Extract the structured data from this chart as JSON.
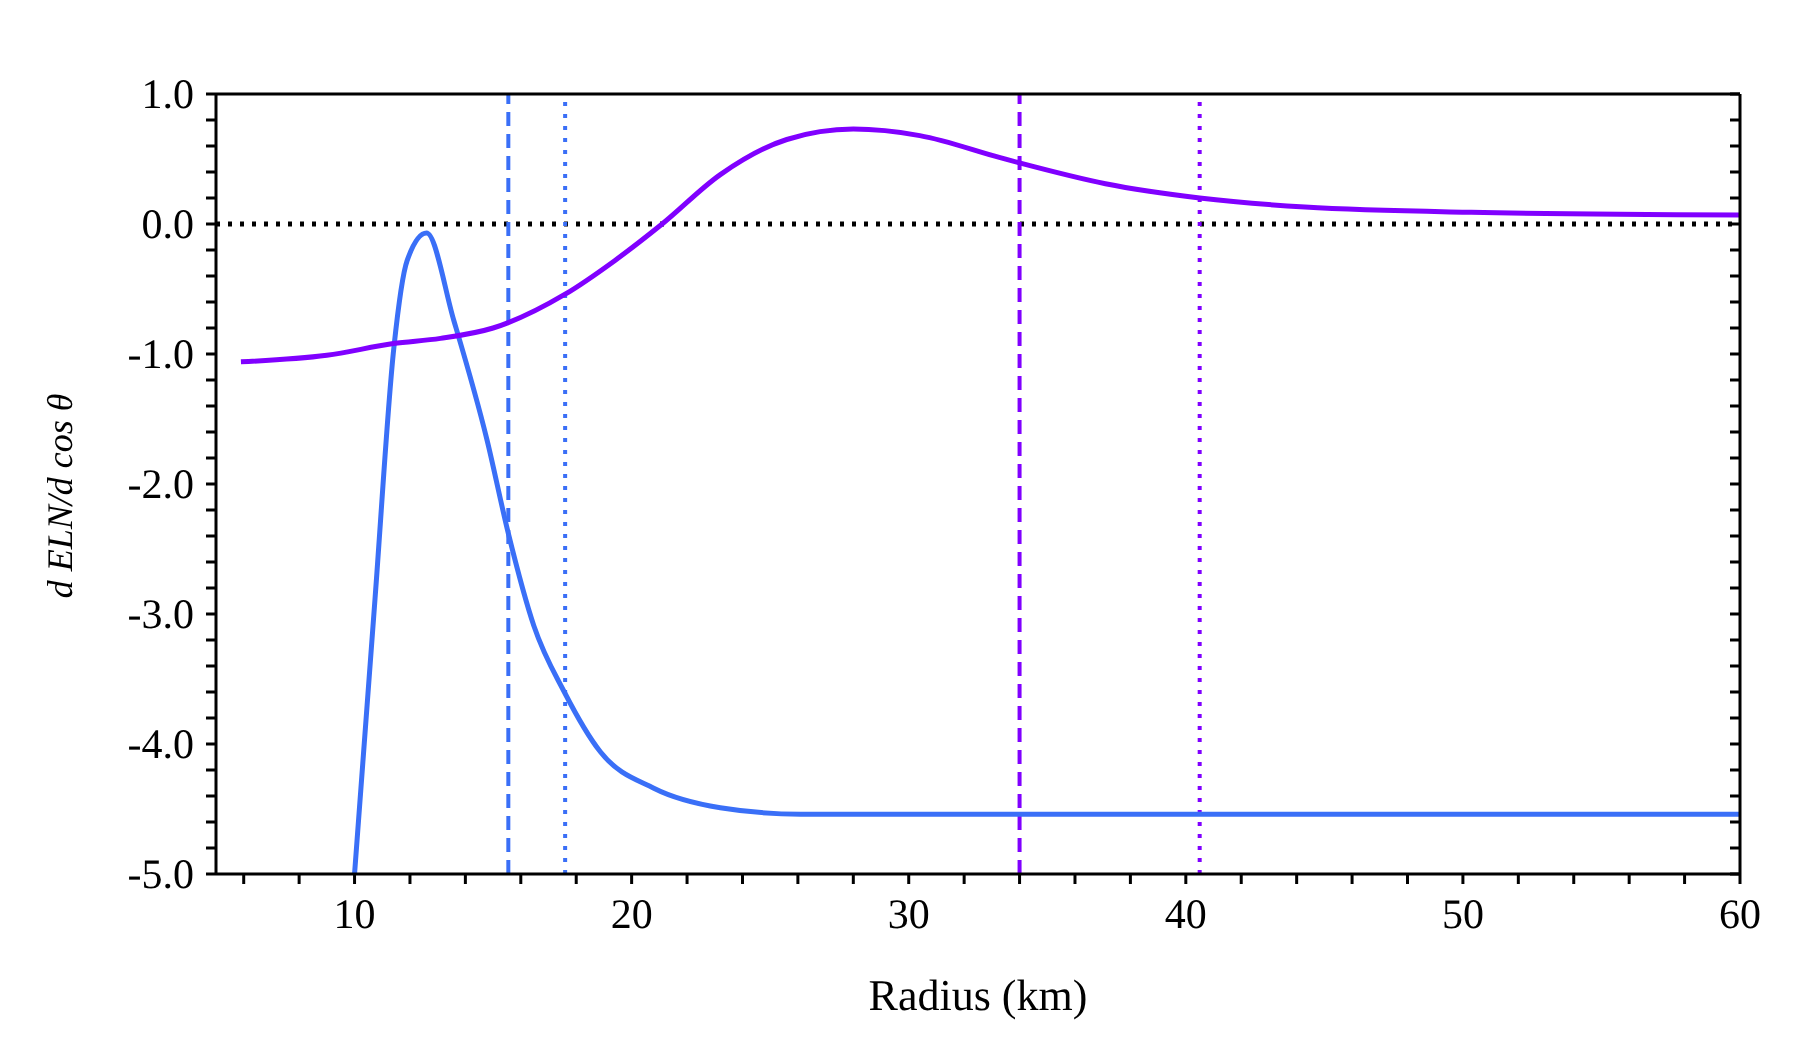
{
  "chart_data": {
    "type": "line",
    "xlabel": "Radius (km)",
    "ylabel": "d ELN/d cos θ",
    "xlim": [
      5,
      60
    ],
    "xticks": [
      {
        "value": 6,
        "label": null
      },
      {
        "value": 8,
        "label": null
      },
      10,
      {
        "value": 12,
        "label": null
      },
      {
        "value": 14,
        "label": null
      },
      {
        "value": 16,
        "label": null
      },
      {
        "value": 18,
        "label": null
      },
      20,
      {
        "value": 22,
        "label": null
      },
      {
        "value": 24,
        "label": null
      },
      {
        "value": 26,
        "label": null
      },
      {
        "value": 28,
        "label": null
      },
      30,
      {
        "value": 32,
        "label": null
      },
      {
        "value": 34,
        "label": null
      },
      {
        "value": 36,
        "label": null
      },
      {
        "value": 38,
        "label": null
      },
      40,
      {
        "value": 42,
        "label": null
      },
      {
        "value": 44,
        "label": null
      },
      {
        "value": 46,
        "label": null
      },
      {
        "value": 48,
        "label": null
      },
      50,
      {
        "value": 52,
        "label": null
      },
      {
        "value": 54,
        "label": null
      },
      {
        "value": 56,
        "label": null
      },
      {
        "value": 58,
        "label": null
      },
      60
    ],
    "ylim": [
      -5,
      1
    ],
    "yticks": [
      {
        "value": -5,
        "label": "-5.0"
      },
      {
        "value": -4.8,
        "label": null
      },
      {
        "value": -4.6,
        "label": null
      },
      {
        "value": -4.4,
        "label": null
      },
      {
        "value": -4.2,
        "label": null
      },
      {
        "value": -4,
        "label": "-4.0"
      },
      {
        "value": -3.8,
        "label": null
      },
      {
        "value": -3.6,
        "label": null
      },
      {
        "value": -3.4,
        "label": null
      },
      {
        "value": -3.2,
        "label": null
      },
      {
        "value": -3,
        "label": "-3.0"
      },
      {
        "value": -2.8,
        "label": null
      },
      {
        "value": -2.6,
        "label": null
      },
      {
        "value": -2.4,
        "label": null
      },
      {
        "value": -2.2,
        "label": null
      },
      {
        "value": -2,
        "label": "-2.0"
      },
      {
        "value": -1.8,
        "label": null
      },
      {
        "value": -1.6,
        "label": null
      },
      {
        "value": -1.4,
        "label": null
      },
      {
        "value": -1.2,
        "label": null
      },
      {
        "value": -1,
        "label": "-1.0"
      },
      {
        "value": -0.8,
        "label": null
      },
      {
        "value": -0.6,
        "label": null
      },
      {
        "value": -0.4,
        "label": null
      },
      {
        "value": -0.2,
        "label": null
      },
      {
        "value": 0,
        "label": "0.0"
      },
      {
        "value": 0.2,
        "label": null
      },
      {
        "value": 0.4,
        "label": null
      },
      {
        "value": 0.6,
        "label": null
      },
      {
        "value": 0.8,
        "label": null
      },
      {
        "value": 1,
        "label": "1.0"
      }
    ],
    "grid": false,
    "legend": false,
    "marker": "none",
    "line_style": "solid",
    "series": [
      {
        "color": "#3a6ff7",
        "x": [
          10.0,
          10.74,
          11.42,
          11.9,
          12.6,
          13.58,
          14.78,
          15.55,
          16.47,
          17.57,
          18.87,
          20.8,
          23.2,
          26.1,
          30,
          40,
          50,
          60
        ],
        "values": [
          -5.0,
          -2.88,
          -0.95,
          -0.28,
          -0.07,
          -0.74,
          -1.66,
          -2.38,
          -3.09,
          -3.6,
          -4.06,
          -4.34,
          -4.49,
          -4.54,
          -4.54,
          -4.54,
          -4.54,
          -4.54
        ]
      },
      {
        "color": "#8000ff",
        "x": [
          5.9,
          9.0,
          11.4,
          13.1,
          15.0,
          17.6,
          19.4,
          21.1,
          23.2,
          25.6,
          28.0,
          30.4,
          33.3,
          34.0,
          37.1,
          40.5,
          44.3,
          50.3,
          60
        ],
        "values": [
          -1.06,
          -1.01,
          -0.92,
          -0.88,
          -0.8,
          -0.54,
          -0.28,
          0.0,
          0.38,
          0.65,
          0.73,
          0.68,
          0.51,
          0.47,
          0.31,
          0.2,
          0.13,
          0.09,
          0.07
        ]
      }
    ],
    "ref_lines": [
      {
        "axis": "y",
        "value": 0,
        "color": "#000000",
        "line_style": "dotted"
      },
      {
        "axis": "x",
        "value": 15.55,
        "color": "#3a6ff7",
        "line_style": "dashed"
      },
      {
        "axis": "x",
        "value": 17.6,
        "color": "#3a6ff7",
        "line_style": "dotted"
      },
      {
        "axis": "x",
        "value": 34.0,
        "color": "#8000ff",
        "line_style": "dashed"
      },
      {
        "axis": "x",
        "value": 40.5,
        "color": "#8000ff",
        "line_style": "dotted"
      }
    ]
  }
}
